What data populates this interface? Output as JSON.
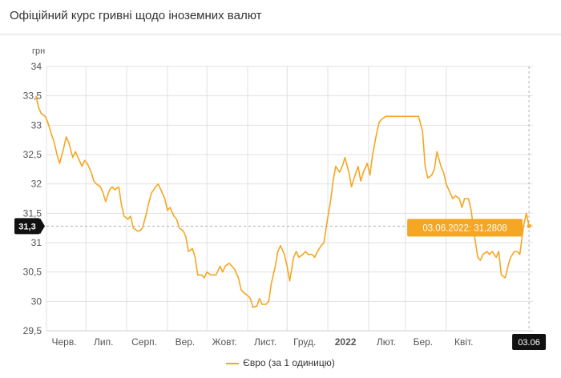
{
  "header": {
    "title": "Офіційний курс гривні щодо іноземних валют"
  },
  "colors": {
    "series": "#f5a623",
    "tooltip_bg": "#f5a623",
    "cursor_bg": "#111111",
    "grid": "#e0e0e0"
  },
  "legend": {
    "label": "Євро (за 1 одиницю)"
  },
  "tooltip": {
    "text": "03.06.2022: 31,2808"
  },
  "cursor": {
    "y_label": "31,3",
    "x_label": "03.06"
  },
  "chart_data": {
    "type": "line",
    "ylabel": "грн",
    "ylim": [
      29.5,
      34
    ],
    "yticks": [
      "34",
      "33,5",
      "33",
      "32,5",
      "32",
      "31,5",
      "31",
      "30,5",
      "30",
      "29,5"
    ],
    "ytick_values": [
      34,
      33.5,
      33,
      32.5,
      32,
      31.5,
      31,
      30.5,
      30,
      29.5
    ],
    "xlim": [
      "2021-06-01",
      "2022-06-06"
    ],
    "xticks": [
      {
        "label": "Черв.",
        "date": "2021-06-01"
      },
      {
        "label": "Лип.",
        "date": "2021-07-01"
      },
      {
        "label": "Серп.",
        "date": "2021-08-01"
      },
      {
        "label": "Вер.",
        "date": "2021-09-01"
      },
      {
        "label": "Жовт.",
        "date": "2021-10-01"
      },
      {
        "label": "Лист.",
        "date": "2021-11-01"
      },
      {
        "label": "Груд.",
        "date": "2021-12-01"
      },
      {
        "label": "2022",
        "date": "2022-01-01",
        "bold": true
      },
      {
        "label": "Лют.",
        "date": "2022-02-01"
      },
      {
        "label": "Бер.",
        "date": "2022-03-01"
      },
      {
        "label": "Квіт.",
        "date": "2022-04-01"
      }
    ],
    "grid": true,
    "series": [
      {
        "name": "Євро (за 1 одиницю)",
        "points": [
          [
            "2021-05-24",
            33.5
          ],
          [
            "2021-05-26",
            33.3
          ],
          [
            "2021-05-28",
            33.2
          ],
          [
            "2021-05-31",
            33.15
          ],
          [
            "2021-06-02",
            33.05
          ],
          [
            "2021-06-04",
            32.9
          ],
          [
            "2021-06-07",
            32.7
          ],
          [
            "2021-06-09",
            32.5
          ],
          [
            "2021-06-11",
            32.35
          ],
          [
            "2021-06-14",
            32.6
          ],
          [
            "2021-06-16",
            32.8
          ],
          [
            "2021-06-18",
            32.7
          ],
          [
            "2021-06-21",
            32.45
          ],
          [
            "2021-06-23",
            32.55
          ],
          [
            "2021-06-25",
            32.45
          ],
          [
            "2021-06-28",
            32.3
          ],
          [
            "2021-06-30",
            32.4
          ],
          [
            "2021-07-02",
            32.35
          ],
          [
            "2021-07-05",
            32.2
          ],
          [
            "2021-07-07",
            32.05
          ],
          [
            "2021-07-09",
            32.0
          ],
          [
            "2021-07-12",
            31.95
          ],
          [
            "2021-07-14",
            31.85
          ],
          [
            "2021-07-16",
            31.7
          ],
          [
            "2021-07-19",
            31.9
          ],
          [
            "2021-07-21",
            31.95
          ],
          [
            "2021-07-23",
            31.9
          ],
          [
            "2021-07-26",
            31.95
          ],
          [
            "2021-07-28",
            31.65
          ],
          [
            "2021-07-30",
            31.45
          ],
          [
            "2021-08-02",
            31.4
          ],
          [
            "2021-08-04",
            31.45
          ],
          [
            "2021-08-06",
            31.25
          ],
          [
            "2021-08-09",
            31.2
          ],
          [
            "2021-08-11",
            31.2
          ],
          [
            "2021-08-13",
            31.25
          ],
          [
            "2021-08-16",
            31.5
          ],
          [
            "2021-08-18",
            31.7
          ],
          [
            "2021-08-20",
            31.85
          ],
          [
            "2021-08-23",
            31.95
          ],
          [
            "2021-08-25",
            32.0
          ],
          [
            "2021-08-27",
            31.9
          ],
          [
            "2021-08-30",
            31.75
          ],
          [
            "2021-09-01",
            31.55
          ],
          [
            "2021-09-03",
            31.6
          ],
          [
            "2021-09-06",
            31.45
          ],
          [
            "2021-09-08",
            31.4
          ],
          [
            "2021-09-10",
            31.25
          ],
          [
            "2021-09-13",
            31.2
          ],
          [
            "2021-09-15",
            31.1
          ],
          [
            "2021-09-17",
            30.85
          ],
          [
            "2021-09-20",
            30.9
          ],
          [
            "2021-09-22",
            30.75
          ],
          [
            "2021-09-24",
            30.45
          ],
          [
            "2021-09-27",
            30.45
          ],
          [
            "2021-09-29",
            30.4
          ],
          [
            "2021-10-01",
            30.5
          ],
          [
            "2021-10-04",
            30.45
          ],
          [
            "2021-10-06",
            30.45
          ],
          [
            "2021-10-08",
            30.45
          ],
          [
            "2021-10-11",
            30.6
          ],
          [
            "2021-10-13",
            30.5
          ],
          [
            "2021-10-15",
            30.6
          ],
          [
            "2021-10-18",
            30.65
          ],
          [
            "2021-10-20",
            30.6
          ],
          [
            "2021-10-22",
            30.55
          ],
          [
            "2021-10-25",
            30.4
          ],
          [
            "2021-10-27",
            30.2
          ],
          [
            "2021-10-29",
            30.15
          ],
          [
            "2021-11-01",
            30.1
          ],
          [
            "2021-11-03",
            30.05
          ],
          [
            "2021-11-05",
            29.9
          ],
          [
            "2021-11-08",
            29.92
          ],
          [
            "2021-11-10",
            30.05
          ],
          [
            "2021-11-12",
            29.95
          ],
          [
            "2021-11-15",
            29.95
          ],
          [
            "2021-11-17",
            30.0
          ],
          [
            "2021-11-19",
            30.3
          ],
          [
            "2021-11-22",
            30.6
          ],
          [
            "2021-11-24",
            30.85
          ],
          [
            "2021-11-26",
            30.95
          ],
          [
            "2021-11-29",
            30.8
          ],
          [
            "2021-12-01",
            30.6
          ],
          [
            "2021-12-03",
            30.35
          ],
          [
            "2021-12-06",
            30.75
          ],
          [
            "2021-12-08",
            30.85
          ],
          [
            "2021-12-10",
            30.75
          ],
          [
            "2021-12-13",
            30.8
          ],
          [
            "2021-12-15",
            30.85
          ],
          [
            "2021-12-17",
            30.8
          ],
          [
            "2021-12-20",
            30.8
          ],
          [
            "2021-12-22",
            30.75
          ],
          [
            "2021-12-24",
            30.85
          ],
          [
            "2021-12-27",
            30.95
          ],
          [
            "2021-12-29",
            31.0
          ],
          [
            "2021-12-31",
            31.3
          ],
          [
            "2022-01-03",
            31.7
          ],
          [
            "2022-01-05",
            32.05
          ],
          [
            "2022-01-07",
            32.3
          ],
          [
            "2022-01-10",
            32.2
          ],
          [
            "2022-01-12",
            32.3
          ],
          [
            "2022-01-14",
            32.45
          ],
          [
            "2022-01-17",
            32.2
          ],
          [
            "2022-01-19",
            31.95
          ],
          [
            "2022-01-21",
            32.1
          ],
          [
            "2022-01-24",
            32.3
          ],
          [
            "2022-01-26",
            32.05
          ],
          [
            "2022-01-28",
            32.2
          ],
          [
            "2022-01-31",
            32.35
          ],
          [
            "2022-02-02",
            32.15
          ],
          [
            "2022-02-04",
            32.5
          ],
          [
            "2022-02-07",
            32.85
          ],
          [
            "2022-02-09",
            33.05
          ],
          [
            "2022-02-11",
            33.1
          ],
          [
            "2022-02-14",
            33.15
          ],
          [
            "2022-02-16",
            33.15
          ],
          [
            "2022-02-18",
            33.15
          ],
          [
            "2022-02-21",
            33.15
          ],
          [
            "2022-02-23",
            33.15
          ],
          [
            "2022-02-25",
            33.15
          ],
          [
            "2022-02-28",
            33.15
          ],
          [
            "2022-03-02",
            33.15
          ],
          [
            "2022-03-04",
            33.15
          ],
          [
            "2022-03-07",
            33.15
          ],
          [
            "2022-03-09",
            33.15
          ],
          [
            "2022-03-11",
            33.15
          ],
          [
            "2022-03-14",
            32.9
          ],
          [
            "2022-03-16",
            32.3
          ],
          [
            "2022-03-18",
            32.1
          ],
          [
            "2022-03-21",
            32.15
          ],
          [
            "2022-03-23",
            32.25
          ],
          [
            "2022-03-25",
            32.55
          ],
          [
            "2022-03-28",
            32.3
          ],
          [
            "2022-03-30",
            32.2
          ],
          [
            "2022-04-01",
            32.0
          ],
          [
            "2022-04-04",
            31.85
          ],
          [
            "2022-04-06",
            31.75
          ],
          [
            "2022-04-08",
            31.8
          ],
          [
            "2022-04-11",
            31.75
          ],
          [
            "2022-04-13",
            31.6
          ],
          [
            "2022-04-15",
            31.75
          ],
          [
            "2022-04-18",
            31.75
          ],
          [
            "2022-04-20",
            31.55
          ],
          [
            "2022-04-22",
            31.2
          ],
          [
            "2022-04-25",
            30.75
          ],
          [
            "2022-04-27",
            30.7
          ],
          [
            "2022-04-29",
            30.8
          ],
          [
            "2022-05-02",
            30.85
          ],
          [
            "2022-05-04",
            30.8
          ],
          [
            "2022-05-06",
            30.85
          ],
          [
            "2022-05-09",
            30.75
          ],
          [
            "2022-05-11",
            30.85
          ],
          [
            "2022-05-13",
            30.45
          ],
          [
            "2022-05-16",
            30.4
          ],
          [
            "2022-05-18",
            30.6
          ],
          [
            "2022-05-20",
            30.75
          ],
          [
            "2022-05-23",
            30.85
          ],
          [
            "2022-05-25",
            30.85
          ],
          [
            "2022-05-27",
            30.8
          ],
          [
            "2022-05-30",
            31.3
          ],
          [
            "2022-06-01",
            31.5
          ],
          [
            "2022-06-03",
            31.2808
          ],
          [
            "2022-06-05",
            31.3
          ]
        ]
      }
    ]
  }
}
